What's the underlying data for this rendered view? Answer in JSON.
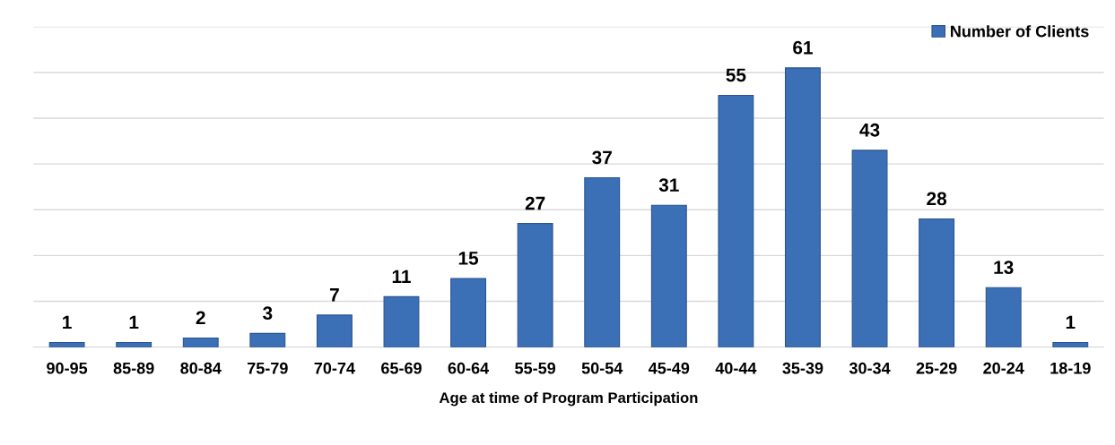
{
  "chart_data": {
    "type": "bar",
    "xlabel": "Age at time of Program Participation",
    "categories": [
      "90-95",
      "85-89",
      "80-84",
      "75-79",
      "70-74",
      "65-69",
      "60-64",
      "55-59",
      "50-54",
      "45-49",
      "40-44",
      "35-39",
      "30-34",
      "25-29",
      "20-24",
      "18-19"
    ],
    "series": [
      {
        "name": "Number of Clients",
        "color": "#3b6fb6",
        "values": [
          1,
          1,
          2,
          3,
          7,
          11,
          15,
          27,
          37,
          31,
          55,
          61,
          43,
          28,
          13,
          1
        ]
      }
    ],
    "ylim": [
      0,
      70
    ],
    "yticks": [
      {
        "value": 0,
        "label": null
      },
      {
        "value": 10,
        "label": null
      },
      {
        "value": 20,
        "label": null
      },
      {
        "value": 30,
        "label": null
      },
      {
        "value": 40,
        "label": null
      },
      {
        "value": 50,
        "label": null
      },
      {
        "value": 60,
        "label": null
      },
      {
        "value": 70,
        "label": null
      }
    ],
    "tick_labels": "x",
    "grid": "y",
    "legend": "top right",
    "data_labels": true
  }
}
